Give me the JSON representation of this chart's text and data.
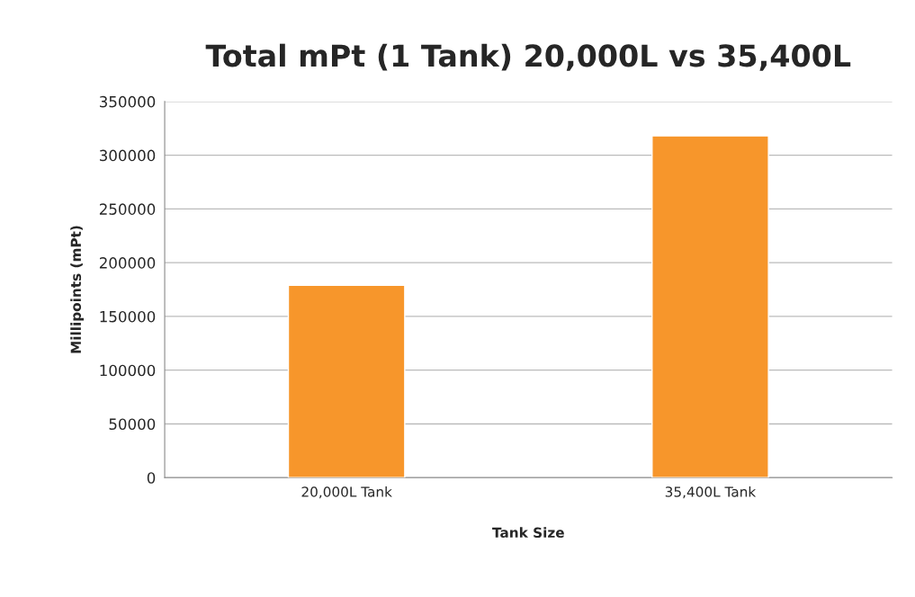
{
  "chart_data": {
    "type": "bar",
    "title": "Total mPt (1 Tank) 20,000L vs 35,400L",
    "xlabel": "Tank Size",
    "ylabel": "Millipoints (mPt)",
    "categories": [
      "20,000L Tank",
      "35,400L Tank"
    ],
    "values": [
      179000,
      318000
    ],
    "color": "#f7962b",
    "ylim": [
      0,
      350000
    ],
    "yticks": [
      0,
      50000,
      100000,
      150000,
      200000,
      250000,
      300000,
      350000
    ],
    "grid": "y",
    "legend": false
  }
}
